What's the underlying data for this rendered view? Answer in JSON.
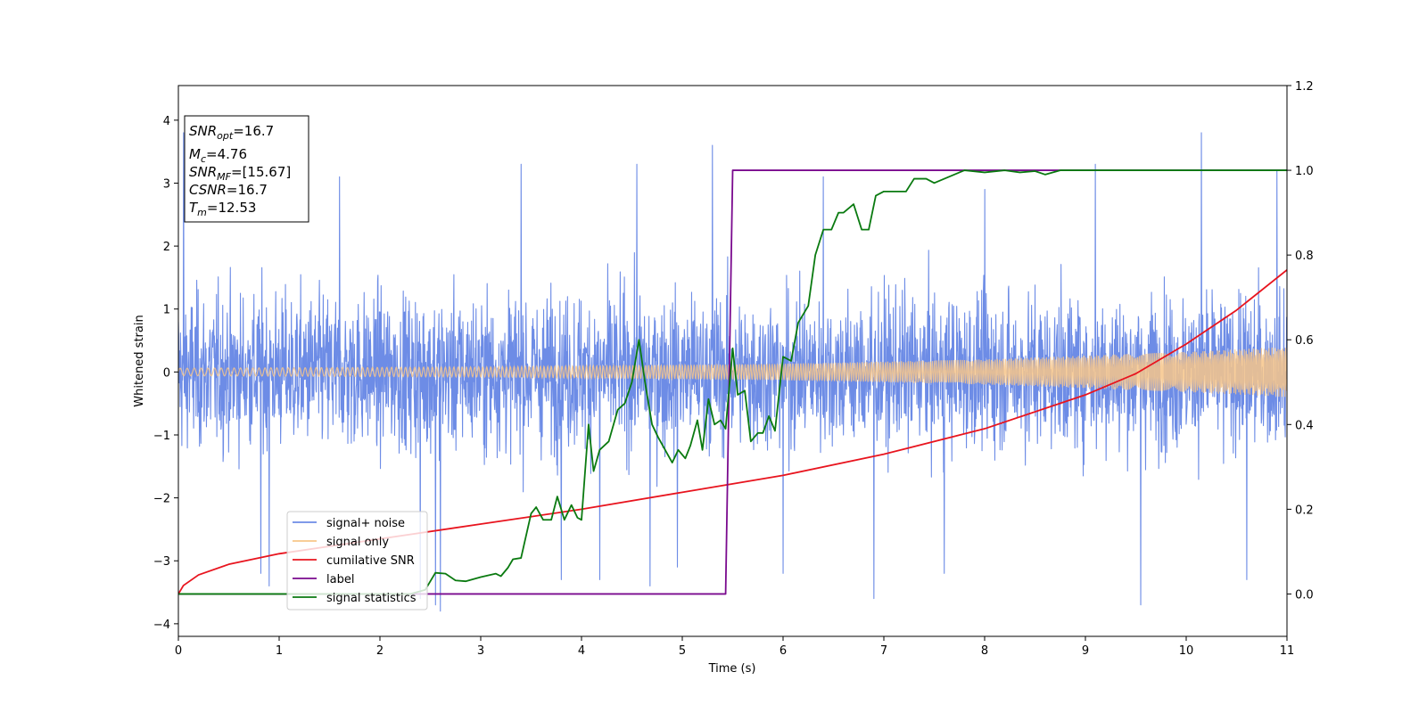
{
  "chart_data": {
    "type": "line",
    "xlabel": "Time (s)",
    "ylabel": "Whitened strain",
    "xlim": [
      0,
      11
    ],
    "ylim_left": [
      -4.2,
      4.55
    ],
    "ylim_right": [
      -0.1,
      1.2
    ],
    "x_ticks": [
      0,
      1,
      2,
      3,
      4,
      5,
      6,
      7,
      8,
      9,
      10,
      11
    ],
    "y_ticks_left": [
      -4,
      -3,
      -2,
      -1,
      0,
      1,
      2,
      3,
      4
    ],
    "y_ticks_right": [
      0.0,
      0.2,
      0.4,
      0.6,
      0.8,
      1.0,
      1.2
    ],
    "grid": false,
    "legend_position": "lower-left",
    "info_box": {
      "position": "upper-left",
      "lines": [
        {
          "base": "SNR",
          "sub": "opt",
          "value": "=16.7"
        },
        {
          "base": "M",
          "sub": "c",
          "value": "=4.76"
        },
        {
          "base": "SNR",
          "sub": "MF",
          "value": "=[15.67]"
        },
        {
          "base": "CSNR",
          "sub": "",
          "value": "=16.7"
        },
        {
          "base": "T",
          "sub": "m",
          "value": "=12.53"
        }
      ]
    },
    "series": [
      {
        "name": "signal+ noise",
        "color": "#6d8ce6",
        "axis": "left",
        "style": "noise band, mostly within ±2.4, spikes to about ±3.8",
        "envelope_abs": 2.4,
        "spikes": [
          [
            0.05,
            3.8
          ],
          [
            0.82,
            -3.2
          ],
          [
            0.9,
            -3.4
          ],
          [
            1.6,
            3.1
          ],
          [
            2.4,
            -3.6
          ],
          [
            2.55,
            -3.7
          ],
          [
            2.6,
            -3.8
          ],
          [
            3.4,
            3.3
          ],
          [
            3.8,
            -3.3
          ],
          [
            4.18,
            -3.3
          ],
          [
            4.55,
            3.3
          ],
          [
            4.68,
            -3.4
          ],
          [
            4.95,
            -3.1
          ],
          [
            5.3,
            3.6
          ],
          [
            6.0,
            -3.2
          ],
          [
            6.4,
            3.1
          ],
          [
            6.9,
            -3.6
          ],
          [
            7.6,
            -3.2
          ],
          [
            8.0,
            2.9
          ],
          [
            9.1,
            3.3
          ],
          [
            9.55,
            -3.7
          ],
          [
            10.15,
            3.8
          ],
          [
            10.6,
            -3.3
          ],
          [
            10.9,
            3.2
          ]
        ]
      },
      {
        "name": "signal only",
        "color": "#f7c689",
        "axis": "left",
        "style": "chirp oscillation, amplitude growing",
        "amplitude": [
          [
            0,
            0.06
          ],
          [
            3,
            0.08
          ],
          [
            6,
            0.13
          ],
          [
            8,
            0.2
          ],
          [
            10,
            0.32
          ],
          [
            11,
            0.4
          ]
        ]
      },
      {
        "name": "cumilative SNR",
        "color": "#e8141e",
        "axis": "right",
        "x": [
          0,
          0.05,
          0.2,
          0.5,
          1,
          2,
          3,
          4,
          5,
          6,
          7,
          8,
          9,
          9.5,
          10,
          10.5,
          11
        ],
        "y": [
          0.0,
          0.02,
          0.045,
          0.07,
          0.095,
          0.13,
          0.165,
          0.2,
          0.24,
          0.28,
          0.33,
          0.39,
          0.47,
          0.52,
          0.59,
          0.67,
          0.765
        ]
      },
      {
        "name": "label",
        "color": "#7a0a8e",
        "axis": "right",
        "x": [
          0,
          5.43,
          5.5,
          11
        ],
        "y": [
          0,
          0,
          1,
          1
        ]
      },
      {
        "name": "signal statistics",
        "color": "#0a7a10",
        "axis": "right",
        "x": [
          0,
          2.0,
          2.3,
          2.45,
          2.55,
          2.65,
          2.75,
          2.85,
          3.0,
          3.15,
          3.2,
          3.27,
          3.32,
          3.4,
          3.5,
          3.55,
          3.62,
          3.7,
          3.76,
          3.83,
          3.9,
          3.96,
          4.0,
          4.07,
          4.12,
          4.18,
          4.27,
          4.36,
          4.43,
          4.5,
          4.57,
          4.63,
          4.7,
          4.76,
          4.83,
          4.9,
          4.96,
          5.03,
          5.08,
          5.15,
          5.2,
          5.26,
          5.32,
          5.38,
          5.43,
          5.5,
          5.55,
          5.62,
          5.68,
          5.75,
          5.8,
          5.86,
          5.92,
          6.0,
          6.08,
          6.15,
          6.25,
          6.32,
          6.4,
          6.48,
          6.55,
          6.6,
          6.7,
          6.78,
          6.85,
          6.92,
          7.0,
          7.1,
          7.22,
          7.3,
          7.42,
          7.5,
          7.6,
          7.7,
          7.8,
          8.0,
          8.2,
          8.35,
          8.5,
          8.6,
          8.75,
          9.0,
          9.3,
          9.6,
          10.0,
          11.0
        ],
        "y": [
          0,
          0,
          0.0,
          0.01,
          0.05,
          0.048,
          0.032,
          0.03,
          0.04,
          0.048,
          0.042,
          0.062,
          0.082,
          0.085,
          0.19,
          0.205,
          0.175,
          0.175,
          0.23,
          0.175,
          0.21,
          0.18,
          0.175,
          0.4,
          0.29,
          0.34,
          0.36,
          0.435,
          0.45,
          0.5,
          0.6,
          0.5,
          0.4,
          0.37,
          0.34,
          0.31,
          0.34,
          0.32,
          0.35,
          0.41,
          0.34,
          0.46,
          0.4,
          0.41,
          0.39,
          0.58,
          0.47,
          0.48,
          0.36,
          0.38,
          0.38,
          0.42,
          0.385,
          0.56,
          0.55,
          0.64,
          0.68,
          0.8,
          0.86,
          0.86,
          0.9,
          0.9,
          0.92,
          0.86,
          0.86,
          0.94,
          0.95,
          0.95,
          0.95,
          0.98,
          0.98,
          0.97,
          0.98,
          0.99,
          1.0,
          0.995,
          1.0,
          0.995,
          0.998,
          0.99,
          1.0,
          1.0,
          1.0,
          1.0,
          1.0,
          1.0
        ]
      }
    ]
  }
}
